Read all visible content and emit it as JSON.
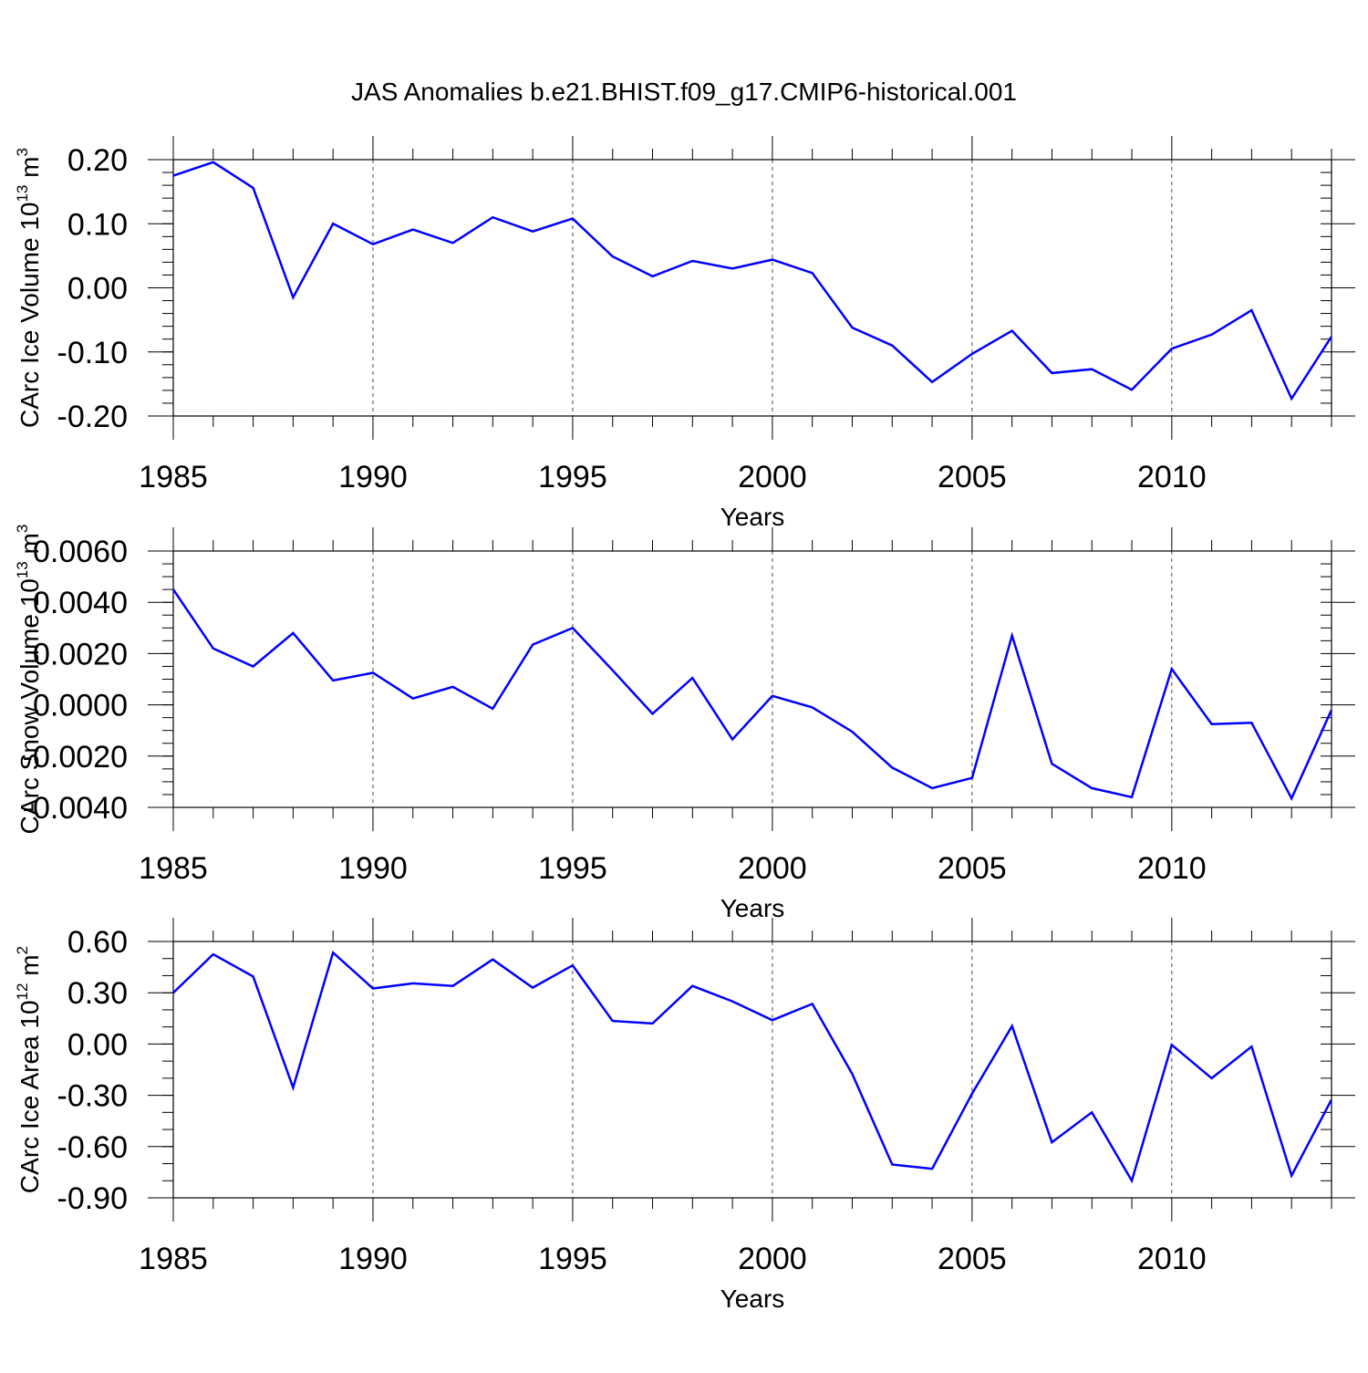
{
  "title": "JAS Anomalies b.e21.BHIST.f09_g17.CMIP6-historical.001",
  "line_color": "#0000ff",
  "chart_data": [
    {
      "type": "line",
      "xlabel": "Years",
      "ylabel_main": "CArc Ice Volume 10",
      "ylabel_exp": "13",
      "ylabel_unit": " m",
      "ylabel_unit_exp": "3",
      "xlim": [
        1985,
        2014
      ],
      "ylim": [
        -0.2,
        0.2
      ],
      "xticks": [
        1985,
        1990,
        1995,
        2000,
        2005,
        2010
      ],
      "yticks": [
        "-0.20",
        "-0.10",
        "0.00",
        "0.10",
        "0.20"
      ],
      "ytick_values": [
        -0.2,
        -0.1,
        0.0,
        0.1,
        0.2
      ],
      "yminor_step": 0.02,
      "grid": "vertical dashed",
      "x": [
        1985,
        1986,
        1987,
        1988,
        1989,
        1990,
        1991,
        1992,
        1993,
        1994,
        1995,
        1996,
        1997,
        1998,
        1999,
        2000,
        2001,
        2002,
        2003,
        2004,
        2005,
        2006,
        2007,
        2008,
        2009,
        2010,
        2011,
        2012,
        2013,
        2014
      ],
      "y": [
        0.175,
        0.196,
        0.156,
        -0.015,
        0.1,
        0.068,
        0.091,
        0.07,
        0.11,
        0.088,
        0.108,
        0.049,
        0.018,
        0.042,
        0.03,
        0.044,
        0.023,
        -0.062,
        -0.09,
        -0.147,
        -0.103,
        -0.067,
        -0.133,
        -0.127,
        -0.159,
        -0.095,
        -0.073,
        -0.035,
        -0.173,
        -0.076
      ]
    },
    {
      "type": "line",
      "xlabel": "Years",
      "ylabel_main": "CArc Snow Volume 10",
      "ylabel_exp": "13",
      "ylabel_unit": " m",
      "ylabel_unit_exp": "3",
      "xlim": [
        1985,
        2014
      ],
      "ylim": [
        -0.004,
        0.006
      ],
      "xticks": [
        1985,
        1990,
        1995,
        2000,
        2005,
        2010
      ],
      "yticks": [
        "-0.0040",
        "-0.0020",
        "0.0000",
        "0.0020",
        "0.0040",
        "0.0060"
      ],
      "ytick_values": [
        -0.004,
        -0.002,
        0.0,
        0.002,
        0.004,
        0.006
      ],
      "yminor_step": 0.0005,
      "grid": "vertical dashed",
      "x": [
        1985,
        1986,
        1987,
        1988,
        1989,
        1990,
        1991,
        1992,
        1993,
        1994,
        1995,
        1996,
        1997,
        1998,
        1999,
        2000,
        2001,
        2002,
        2003,
        2004,
        2005,
        2006,
        2007,
        2008,
        2009,
        2010,
        2011,
        2012,
        2013,
        2014
      ],
      "y": [
        0.0045,
        0.0022,
        0.0015,
        0.0028,
        0.00095,
        0.00125,
        0.00025,
        0.0007,
        -0.00015,
        0.00235,
        0.003,
        0.00135,
        -0.00035,
        0.00105,
        -0.00135,
        0.00035,
        -0.0001,
        -0.00105,
        -0.00245,
        -0.00325,
        -0.00285,
        0.0027,
        -0.0023,
        -0.00325,
        -0.0036,
        0.0014,
        -0.00075,
        -0.0007,
        -0.00365,
        -0.0002
      ]
    },
    {
      "type": "line",
      "xlabel": "Years",
      "ylabel_main": "CArc Ice Area 10",
      "ylabel_exp": "12",
      "ylabel_unit": " m",
      "ylabel_unit_exp": "2",
      "xlim": [
        1985,
        2014
      ],
      "ylim": [
        -0.9,
        0.6
      ],
      "xticks": [
        1985,
        1990,
        1995,
        2000,
        2005,
        2010
      ],
      "yticks": [
        "-0.90",
        "-0.60",
        "-0.30",
        "0.00",
        "0.30",
        "0.60"
      ],
      "ytick_values": [
        -0.9,
        -0.6,
        -0.3,
        0.0,
        0.3,
        0.6
      ],
      "yminor_step": 0.1,
      "grid": "vertical dashed",
      "x": [
        1985,
        1986,
        1987,
        1988,
        1989,
        1990,
        1991,
        1992,
        1993,
        1994,
        1995,
        1996,
        1997,
        1998,
        1999,
        2000,
        2001,
        2002,
        2003,
        2004,
        2005,
        2006,
        2007,
        2008,
        2009,
        2010,
        2011,
        2012,
        2013,
        2014
      ],
      "y": [
        0.3,
        0.525,
        0.395,
        -0.255,
        0.535,
        0.325,
        0.355,
        0.34,
        0.495,
        0.33,
        0.46,
        0.135,
        0.12,
        0.34,
        0.25,
        0.14,
        0.235,
        -0.175,
        -0.705,
        -0.73,
        -0.29,
        0.105,
        -0.575,
        -0.4,
        -0.8,
        -0.005,
        -0.2,
        -0.015,
        -0.77,
        -0.325
      ]
    }
  ]
}
